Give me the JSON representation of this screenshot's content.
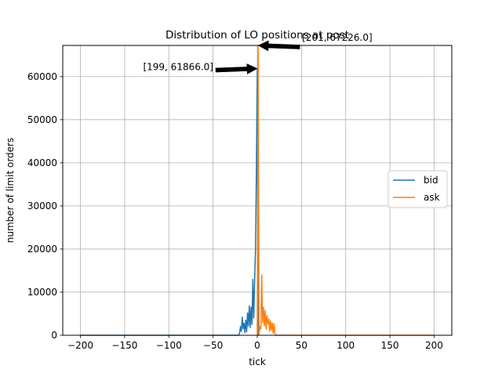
{
  "chart_data": {
    "type": "line",
    "title": "Distribution of LO positions at post",
    "xlabel": "tick",
    "ylabel": "number of limit orders",
    "xlim": [
      -220,
      220
    ],
    "ylim": [
      0,
      67226
    ],
    "xticks": [
      -200,
      -150,
      -100,
      -50,
      0,
      50,
      100,
      150,
      200
    ],
    "xtick_labels": [
      "−200",
      "−150",
      "−100",
      "−50",
      "0",
      "50",
      "100",
      "150",
      "200"
    ],
    "yticks": [
      0,
      10000,
      20000,
      30000,
      40000,
      50000,
      60000
    ],
    "ytick_labels": [
      "0",
      "10000",
      "20000",
      "30000",
      "40000",
      "50000",
      "60000"
    ],
    "grid": true,
    "legend_position": "center-right",
    "series": [
      {
        "name": "bid",
        "color": "#1f77b4",
        "x": [
          -200,
          -21,
          -20,
          -19,
          -18,
          -17,
          -16,
          -15,
          -14,
          -13,
          -12,
          -11,
          -10,
          -9,
          -8,
          -7,
          -6,
          -5,
          -4,
          -3,
          -2,
          -1,
          0,
          1
        ],
        "y": [
          0,
          0,
          500,
          2000,
          900,
          4200,
          1500,
          2800,
          600,
          3500,
          800,
          5200,
          2200,
          6800,
          1800,
          6500,
          2500,
          13000,
          4000,
          12500,
          20000,
          38000,
          61866,
          0
        ]
      },
      {
        "name": "ask",
        "color": "#ff7f0e",
        "x": [
          0,
          1,
          2,
          3,
          4,
          5,
          6,
          7,
          8,
          9,
          10,
          11,
          12,
          13,
          14,
          15,
          16,
          17,
          18,
          19,
          20,
          21,
          200
        ],
        "y": [
          0,
          67226,
          0,
          2000,
          1500,
          14000,
          3000,
          6500,
          2200,
          5800,
          1400,
          4500,
          2600,
          3800,
          900,
          3300,
          1200,
          2900,
          500,
          2700,
          300,
          0,
          0
        ]
      }
    ],
    "annotations": [
      {
        "text": "[199, 61866.0]",
        "point_x": 0,
        "point_y": 61866,
        "text_side": "left"
      },
      {
        "text": "[201, 67226.0]",
        "point_x": 1,
        "point_y": 67226,
        "text_side": "right"
      }
    ]
  }
}
